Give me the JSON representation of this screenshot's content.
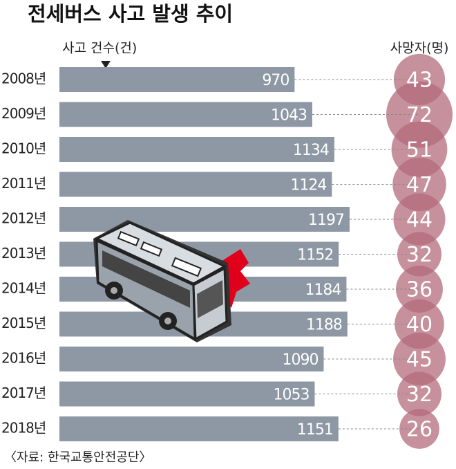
{
  "chart_data": {
    "type": "bar-bubble",
    "title": "전세버스 사고 발생 추이",
    "bar_label": "사고 건수(건)",
    "bubble_label": "사망자(명)",
    "categories": [
      "2008년",
      "2009년",
      "2010년",
      "2011년",
      "2012년",
      "2013년",
      "2014년",
      "2015년",
      "2016년",
      "2017년",
      "2018년"
    ],
    "series": [
      {
        "name": "사고 건수(건)",
        "color": "#8d98a4",
        "values": [
          970,
          1043,
          1134,
          1124,
          1197,
          1152,
          1184,
          1188,
          1090,
          1053,
          1151
        ]
      },
      {
        "name": "사망자(명)",
        "color": "#b36b7b",
        "values": [
          43,
          72,
          51,
          47,
          44,
          32,
          36,
          40,
          45,
          32,
          26
        ]
      }
    ],
    "source": "〈자료: 한국교통안전공단〉"
  }
}
